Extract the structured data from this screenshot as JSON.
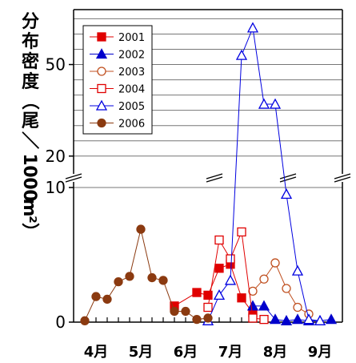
{
  "chart_data": {
    "type": "line",
    "ylabel": "分布密度（尾／1000m²）",
    "ylabel_chars": [
      "分",
      "布",
      "密",
      "度",
      "（",
      "尾",
      "／",
      "1",
      "0",
      "0",
      "0",
      "m",
      "²",
      "）"
    ],
    "x_ticks": [
      "4月",
      "5月",
      "6月",
      "7月",
      "8月",
      "9月"
    ],
    "y_ticks_lower": [
      "0",
      "10"
    ],
    "y_ticks_upper": [
      "20",
      "50"
    ],
    "y_break": [
      10,
      16
    ],
    "ylim_lower": [
      0,
      10
    ],
    "ylim_upper": [
      16,
      68
    ],
    "xlim": [
      0,
      24
    ],
    "grid": true,
    "legend_position": "top-left",
    "series": [
      {
        "name": "2001",
        "color": "#e00000",
        "marker": "square",
        "filled": true,
        "x": [
          9,
          11,
          12,
          13,
          14,
          15,
          16
        ],
        "y": [
          1.2,
          2.2,
          2.0,
          4.0,
          4.3,
          1.8,
          0.7
        ]
      },
      {
        "name": "2002",
        "color": "#0000cc",
        "marker": "triangle",
        "filled": true,
        "x": [
          16,
          17,
          18,
          19,
          20,
          21,
          22,
          23
        ],
        "y": [
          1.2,
          1.2,
          0.2,
          0.1,
          0.2,
          0.1,
          0.1,
          0.2
        ]
      },
      {
        "name": "2003",
        "color": "#c05020",
        "marker": "circle",
        "filled": false,
        "x": [
          16,
          17,
          18,
          19,
          20,
          21
        ],
        "y": [
          2.3,
          3.2,
          4.4,
          2.5,
          1.1,
          0.6
        ]
      },
      {
        "name": "2004",
        "color": "#e00000",
        "marker": "square",
        "filled": false,
        "x": [
          12,
          13,
          14,
          15,
          16,
          17
        ],
        "y": [
          1.1,
          6.1,
          4.7,
          6.7,
          0.3,
          0.2
        ]
      },
      {
        "name": "2005",
        "color": "#0000e0",
        "marker": "triangle",
        "filled": false,
        "x": [
          12,
          13,
          14,
          15,
          16,
          17,
          18,
          19,
          20,
          21,
          22
        ],
        "y": [
          0.1,
          2.0,
          3.1,
          53,
          62,
          37,
          37,
          9.5,
          3.8,
          0.2,
          0.1
        ]
      },
      {
        "name": "2006",
        "color": "#8b3a10",
        "marker": "circle",
        "filled": true,
        "x": [
          1,
          2,
          3,
          4,
          5,
          6,
          7,
          8,
          9,
          10,
          11,
          12
        ],
        "y": [
          0.1,
          1.9,
          1.7,
          3.0,
          3.4,
          6.9,
          3.3,
          3.1,
          0.8,
          0.8,
          0.2,
          0.3
        ]
      }
    ]
  }
}
